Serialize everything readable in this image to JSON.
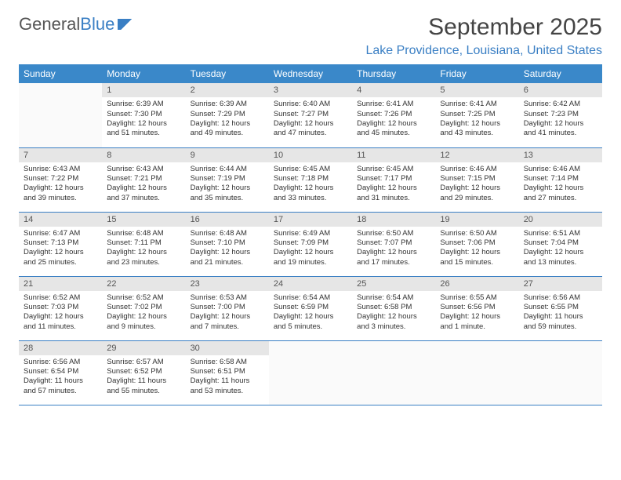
{
  "brand": {
    "part1": "General",
    "part2": "Blue"
  },
  "title": "September 2025",
  "location": "Lake Providence, Louisiana, United States",
  "colors": {
    "header_bg": "#3a88c9",
    "header_text": "#ffffff",
    "accent": "#3a7fc4",
    "daynum_bg": "#e6e6e6",
    "body_text": "#333333",
    "row_border": "#3a7fc4"
  },
  "fonts": {
    "title_size_pt": 22,
    "location_size_pt": 12,
    "header_size_pt": 9,
    "cell_size_pt": 7
  },
  "weekdays": [
    "Sunday",
    "Monday",
    "Tuesday",
    "Wednesday",
    "Thursday",
    "Friday",
    "Saturday"
  ],
  "weeks": [
    [
      null,
      {
        "n": "1",
        "sr": "6:39 AM",
        "ss": "7:30 PM",
        "dl": "12 hours and 51 minutes."
      },
      {
        "n": "2",
        "sr": "6:39 AM",
        "ss": "7:29 PM",
        "dl": "12 hours and 49 minutes."
      },
      {
        "n": "3",
        "sr": "6:40 AM",
        "ss": "7:27 PM",
        "dl": "12 hours and 47 minutes."
      },
      {
        "n": "4",
        "sr": "6:41 AM",
        "ss": "7:26 PM",
        "dl": "12 hours and 45 minutes."
      },
      {
        "n": "5",
        "sr": "6:41 AM",
        "ss": "7:25 PM",
        "dl": "12 hours and 43 minutes."
      },
      {
        "n": "6",
        "sr": "6:42 AM",
        "ss": "7:23 PM",
        "dl": "12 hours and 41 minutes."
      }
    ],
    [
      {
        "n": "7",
        "sr": "6:43 AM",
        "ss": "7:22 PM",
        "dl": "12 hours and 39 minutes."
      },
      {
        "n": "8",
        "sr": "6:43 AM",
        "ss": "7:21 PM",
        "dl": "12 hours and 37 minutes."
      },
      {
        "n": "9",
        "sr": "6:44 AM",
        "ss": "7:19 PM",
        "dl": "12 hours and 35 minutes."
      },
      {
        "n": "10",
        "sr": "6:45 AM",
        "ss": "7:18 PM",
        "dl": "12 hours and 33 minutes."
      },
      {
        "n": "11",
        "sr": "6:45 AM",
        "ss": "7:17 PM",
        "dl": "12 hours and 31 minutes."
      },
      {
        "n": "12",
        "sr": "6:46 AM",
        "ss": "7:15 PM",
        "dl": "12 hours and 29 minutes."
      },
      {
        "n": "13",
        "sr": "6:46 AM",
        "ss": "7:14 PM",
        "dl": "12 hours and 27 minutes."
      }
    ],
    [
      {
        "n": "14",
        "sr": "6:47 AM",
        "ss": "7:13 PM",
        "dl": "12 hours and 25 minutes."
      },
      {
        "n": "15",
        "sr": "6:48 AM",
        "ss": "7:11 PM",
        "dl": "12 hours and 23 minutes."
      },
      {
        "n": "16",
        "sr": "6:48 AM",
        "ss": "7:10 PM",
        "dl": "12 hours and 21 minutes."
      },
      {
        "n": "17",
        "sr": "6:49 AM",
        "ss": "7:09 PM",
        "dl": "12 hours and 19 minutes."
      },
      {
        "n": "18",
        "sr": "6:50 AM",
        "ss": "7:07 PM",
        "dl": "12 hours and 17 minutes."
      },
      {
        "n": "19",
        "sr": "6:50 AM",
        "ss": "7:06 PM",
        "dl": "12 hours and 15 minutes."
      },
      {
        "n": "20",
        "sr": "6:51 AM",
        "ss": "7:04 PM",
        "dl": "12 hours and 13 minutes."
      }
    ],
    [
      {
        "n": "21",
        "sr": "6:52 AM",
        "ss": "7:03 PM",
        "dl": "12 hours and 11 minutes."
      },
      {
        "n": "22",
        "sr": "6:52 AM",
        "ss": "7:02 PM",
        "dl": "12 hours and 9 minutes."
      },
      {
        "n": "23",
        "sr": "6:53 AM",
        "ss": "7:00 PM",
        "dl": "12 hours and 7 minutes."
      },
      {
        "n": "24",
        "sr": "6:54 AM",
        "ss": "6:59 PM",
        "dl": "12 hours and 5 minutes."
      },
      {
        "n": "25",
        "sr": "6:54 AM",
        "ss": "6:58 PM",
        "dl": "12 hours and 3 minutes."
      },
      {
        "n": "26",
        "sr": "6:55 AM",
        "ss": "6:56 PM",
        "dl": "12 hours and 1 minute."
      },
      {
        "n": "27",
        "sr": "6:56 AM",
        "ss": "6:55 PM",
        "dl": "11 hours and 59 minutes."
      }
    ],
    [
      {
        "n": "28",
        "sr": "6:56 AM",
        "ss": "6:54 PM",
        "dl": "11 hours and 57 minutes."
      },
      {
        "n": "29",
        "sr": "6:57 AM",
        "ss": "6:52 PM",
        "dl": "11 hours and 55 minutes."
      },
      {
        "n": "30",
        "sr": "6:58 AM",
        "ss": "6:51 PM",
        "dl": "11 hours and 53 minutes."
      },
      null,
      null,
      null,
      null
    ]
  ],
  "labels": {
    "sunrise": "Sunrise:",
    "sunset": "Sunset:",
    "daylight": "Daylight:"
  }
}
